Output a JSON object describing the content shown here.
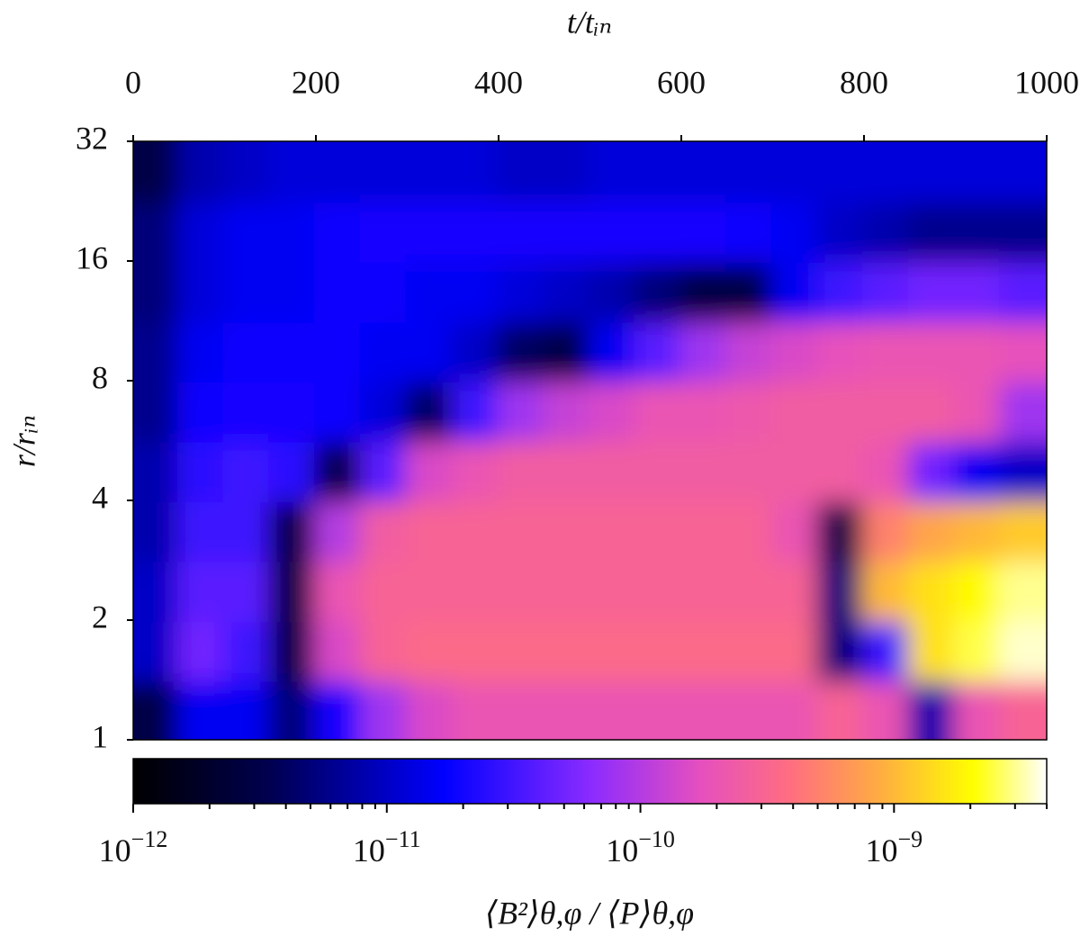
{
  "chart_data": {
    "type": "heatmap",
    "xlabel": "t/tᵢₙ",
    "ylabel": "r/rᵢₙ",
    "colorbar_label": "⟨B²⟩θ,φ / ⟨P⟩θ,φ",
    "xlim": [
      0,
      1000
    ],
    "xticks": [
      0,
      200,
      400,
      600,
      800,
      1000
    ],
    "ylim": [
      1,
      32
    ],
    "yticks": [
      1,
      2,
      4,
      8,
      16,
      32
    ],
    "yscale": "log",
    "x": [
      25,
      75,
      125,
      175,
      225,
      275,
      325,
      375,
      425,
      475,
      525,
      575,
      625,
      675,
      725,
      775,
      825,
      875,
      925,
      975
    ],
    "y": [
      1.19,
      1.68,
      2.38,
      3.36,
      4.76,
      6.73,
      9.51,
      13.45,
      19.03,
      26.91
    ],
    "z": [
      [
        3e-12,
        1.5e-11,
        1.5e-11,
        5e-12,
        2e-11,
        8e-11,
        1.5e-10,
        2e-10,
        2e-10,
        2e-10,
        2e-10,
        2e-10,
        2e-10,
        2e-10,
        2e-10,
        3e-10,
        2e-10,
        8e-12,
        2e-10,
        3e-10
      ],
      [
        1e-11,
        5e-11,
        3e-11,
        3e-12,
        1.5e-10,
        3e-10,
        3.5e-10,
        3.5e-10,
        3.5e-10,
        3.5e-10,
        3.5e-10,
        3.5e-10,
        3.5e-10,
        3.5e-10,
        3.5e-10,
        5e-12,
        3e-11,
        1.5e-09,
        2.5e-09,
        3.5e-09
      ],
      [
        1e-11,
        4e-11,
        4e-11,
        3e-12,
        2e-10,
        3e-10,
        3e-10,
        3e-10,
        3e-10,
        3e-10,
        3e-10,
        3e-10,
        3e-10,
        3e-10,
        3e-10,
        5e-12,
        1e-09,
        1.5e-09,
        2e-09,
        3e-09
      ],
      [
        8e-12,
        3e-11,
        3e-11,
        3e-12,
        1e-10,
        2.5e-10,
        3e-10,
        3e-10,
        3e-10,
        3e-10,
        3e-10,
        3e-10,
        3e-10,
        3e-10,
        2e-10,
        3e-12,
        5e-10,
        8e-10,
        1e-09,
        1.2e-09
      ],
      [
        8e-12,
        2.5e-11,
        3e-11,
        2.5e-11,
        3e-12,
        4e-11,
        1.5e-10,
        2e-10,
        2.5e-10,
        2.5e-10,
        2.5e-10,
        2.5e-10,
        2.5e-10,
        2.5e-10,
        2.5e-10,
        2.5e-10,
        2e-10,
        5e-11,
        1.5e-11,
        1e-11
      ],
      [
        6e-12,
        1.8e-11,
        2e-11,
        2e-11,
        1.8e-11,
        1.2e-11,
        4e-12,
        3e-11,
        8e-11,
        1.2e-10,
        1.5e-10,
        2e-10,
        2e-10,
        2.2e-10,
        2.5e-10,
        2.5e-10,
        2.5e-10,
        2.5e-10,
        2e-10,
        8e-11
      ],
      [
        6e-12,
        1.5e-11,
        1.8e-11,
        1.8e-11,
        1.8e-11,
        1.5e-11,
        1.5e-11,
        1e-11,
        4e-12,
        3e-12,
        1.5e-11,
        4e-11,
        8e-11,
        1.2e-10,
        1.5e-10,
        1.8e-10,
        2e-10,
        2e-10,
        2e-10,
        1.8e-10
      ],
      [
        5e-12,
        1.2e-11,
        1.5e-11,
        1.5e-11,
        1.8e-11,
        1.8e-11,
        1.5e-11,
        1.5e-11,
        1.2e-11,
        1e-11,
        8e-12,
        5e-12,
        3e-12,
        3e-12,
        1.5e-11,
        3e-11,
        4e-11,
        5e-11,
        5e-11,
        4e-11
      ],
      [
        5e-12,
        1.2e-11,
        1.5e-11,
        1.5e-11,
        1.8e-11,
        2e-11,
        2e-11,
        2e-11,
        2e-11,
        2e-11,
        2e-11,
        2e-11,
        2e-11,
        1.8e-11,
        1.5e-11,
        1e-11,
        8e-12,
        6e-12,
        6e-12,
        6e-12
      ],
      [
        3e-12,
        8e-12,
        1e-11,
        1.2e-11,
        1.2e-11,
        1.2e-11,
        1.2e-11,
        1.2e-11,
        1e-11,
        1e-11,
        1.2e-11,
        1.2e-11,
        1.2e-11,
        1.2e-11,
        1.2e-11,
        1.2e-11,
        1.2e-11,
        1.2e-11,
        1.2e-11,
        1.2e-11
      ]
    ],
    "clim": [
      1e-12,
      4e-09
    ],
    "cscale": "log",
    "cticks": [
      {
        "value": 1e-12,
        "label": "10−12"
      },
      {
        "value": 1e-11,
        "label": "10−11"
      },
      {
        "value": 1e-10,
        "label": "10−10"
      },
      {
        "value": 1e-09,
        "label": "10−9"
      }
    ],
    "cticks_minor": [
      2e-12,
      3e-12,
      4e-12,
      5e-12,
      6e-12,
      7e-12,
      8e-12,
      9e-12,
      2e-11,
      3e-11,
      4e-11,
      5e-11,
      6e-11,
      7e-11,
      8e-11,
      9e-11,
      2e-10,
      3e-10,
      4e-10,
      5e-10,
      6e-10,
      7e-10,
      8e-10,
      9e-10,
      2e-09,
      3e-09,
      4e-09
    ],
    "colormap": [
      {
        "pos": 0,
        "color": "#000000"
      },
      {
        "pos": 0.15,
        "color": "#000050"
      },
      {
        "pos": 0.34,
        "color": "#0000ff"
      },
      {
        "pos": 0.5,
        "color": "#8a2bff"
      },
      {
        "pos": 0.62,
        "color": "#e54fbf"
      },
      {
        "pos": 0.72,
        "color": "#ff6e80"
      },
      {
        "pos": 0.82,
        "color": "#ffae40"
      },
      {
        "pos": 0.92,
        "color": "#ffff00"
      },
      {
        "pos": 1,
        "color": "#ffffff"
      }
    ]
  }
}
